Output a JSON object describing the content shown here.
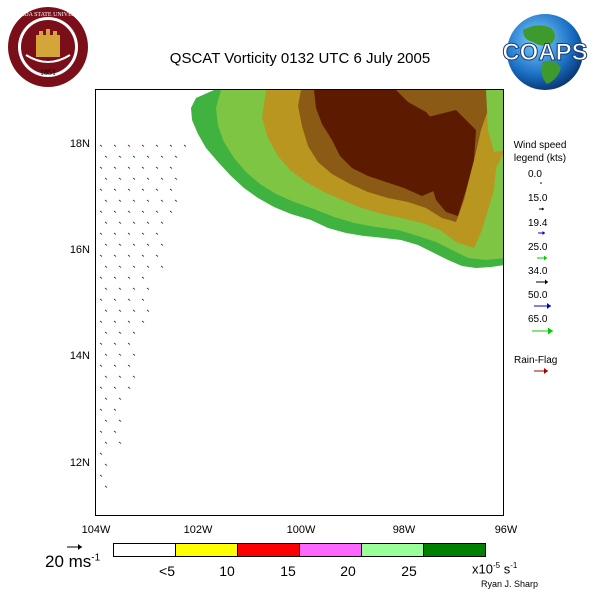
{
  "title": "QSCAT Vorticity 0132 UTC 6 July 2005",
  "map": {
    "lat_labels": [
      "18N",
      "16N",
      "14N",
      "12N"
    ],
    "lon_labels": [
      "104W",
      "102W",
      "100W",
      "98W",
      "96W"
    ],
    "land_colors": {
      "coast": "#3fb23f",
      "lowland": "#7fc544",
      "midland": "#b89620",
      "upland": "#8b5a14",
      "highland": "#5c1a00",
      "ocean": "#ffffff"
    }
  },
  "wind_legend": {
    "title_line1": "Wind speed",
    "title_line2": "legend (kts)",
    "entries": [
      {
        "value": "0.0",
        "color": "#000000",
        "label_style": "dot"
      },
      {
        "value": "15.0",
        "color": "#000000",
        "label_style": "small"
      },
      {
        "value": "19.4",
        "color": "#0000cc",
        "label_style": "small"
      },
      {
        "value": "25.0",
        "color": "#00cc00",
        "label_style": "medium"
      },
      {
        "value": "34.0",
        "color": "#000000",
        "label_style": "medium"
      },
      {
        "value": "50.0",
        "color": "#0000cc",
        "label_style": "large"
      },
      {
        "value": "65.0",
        "color": "#00cc00",
        "label_style": "large"
      }
    ],
    "rain_flag_label": "Rain-Flag",
    "rain_flag_color": "#aa0000"
  },
  "colorbar": {
    "colors": [
      "#ffffff",
      "#ffff00",
      "#ff0000",
      "#ff66ff",
      "#99ff99",
      "#008000"
    ],
    "tick_labels": [
      "<5",
      "10",
      "15",
      "20",
      "25"
    ],
    "units_prefix": "x10",
    "units_exp": "-5",
    "units_suffix": "s",
    "units_suffix_exp": "-1"
  },
  "scale": {
    "value": "20 ms",
    "exp": "-1"
  },
  "credit": "Ryan J. Sharp",
  "logos": {
    "fsu_text": "FLORIDA STATE UNIVERSITY",
    "fsu_year": "1851",
    "coaps_text": "COAPS"
  }
}
